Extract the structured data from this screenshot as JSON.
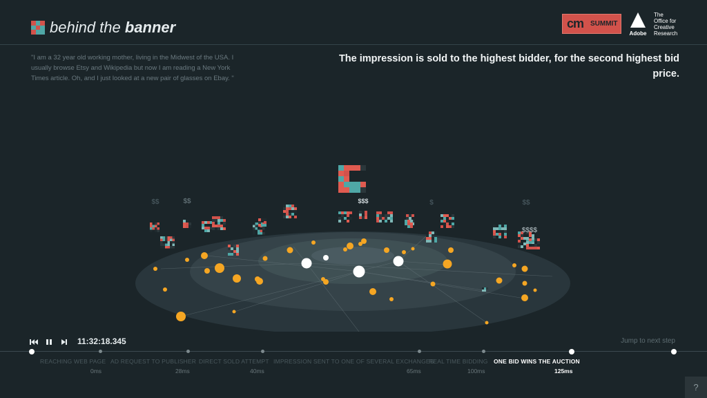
{
  "header": {
    "brand_light": "behind the ",
    "brand_bold": "banner",
    "cm_logo": "cm",
    "summit": "SUMMIT",
    "adobe": "Adobe",
    "ocr_lines": [
      "The",
      "Office for",
      "Creative",
      "Research"
    ]
  },
  "quote": "\"I am a 32 year old working mother, living in the Midwest of the USA. I usually browse Etsy and Wikipedia but now I am reading a New York Times article. Oh, and I just looked at a new pair of glasses on Ebay. \"",
  "headline": "The impression is sold to the highest bidder, for the second highest bid price.",
  "bids": {
    "top_label": "$$$",
    "labels": [
      "$$",
      "$$",
      "$",
      "$$",
      "$$$$"
    ]
  },
  "player": {
    "timecode": "11:32:18.345",
    "jump": "Jump to next step"
  },
  "steps": [
    {
      "label": "REACHING WEB PAGE",
      "time": "0ms",
      "active": false
    },
    {
      "label": "AD REQUEST TO PUBLISHER",
      "time": "28ms",
      "active": false
    },
    {
      "label": "DIRECT SOLD ATTEMPT",
      "time": "40ms",
      "active": false
    },
    {
      "label": "IMPRESSION SENT TO ONE OF SEVERAL EXCHANGES",
      "time": "65ms",
      "active": false
    },
    {
      "label": "REAL TIME BIDDING",
      "time": "100ms",
      "active": false
    },
    {
      "label": "ONE BID WINS THE AUCTION",
      "time": "125ms",
      "active": true
    }
  ],
  "help": "?",
  "colors": {
    "background": "#1b2529",
    "red": "#d2524b",
    "teal": "#4fa7a6",
    "orange": "#f5a623",
    "white": "#ffffff"
  }
}
